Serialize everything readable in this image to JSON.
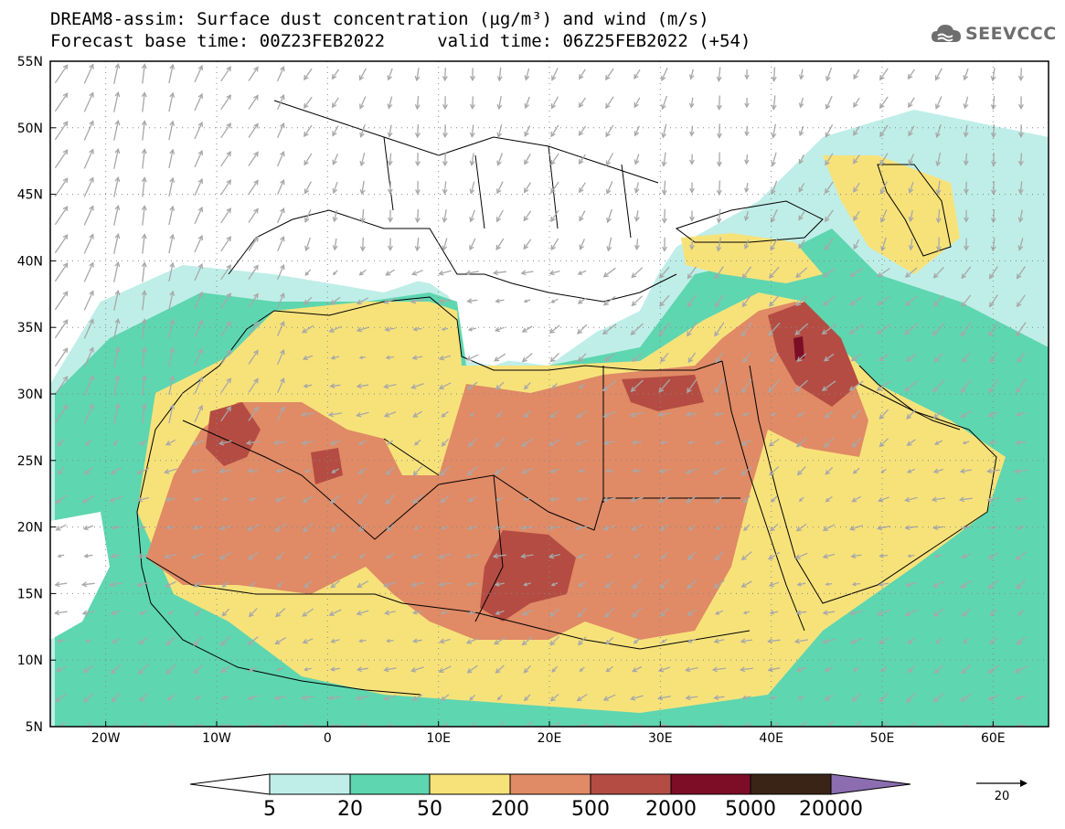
{
  "header": {
    "title_line1": "DREAM8-assim: Surface dust concentration (µg/m³) and wind (m/s)",
    "title_line2": "Forecast base time: 00Z23FEB2022     valid time: 06Z25FEB2022 (+54)"
  },
  "logo": {
    "text": "SEEVCCC",
    "icon": "cloud-logo-icon"
  },
  "map": {
    "lat_ticks": [
      "55N",
      "50N",
      "45N",
      "40N",
      "35N",
      "30N",
      "25N",
      "20N",
      "15N",
      "10N",
      "5N"
    ],
    "lon_ticks": [
      "20W",
      "10W",
      "0",
      "10E",
      "20E",
      "30E",
      "40E",
      "50E",
      "60E"
    ],
    "lon_range": [
      -25,
      65
    ],
    "lat_range": [
      5,
      55
    ],
    "wind_arrow_color": "#a8a8a8",
    "border_color": "#000000"
  },
  "colorbar": {
    "labels": [
      "5",
      "20",
      "50",
      "200",
      "500",
      "2000",
      "5000",
      "20000"
    ],
    "colors": [
      "#ffffff",
      "#bfeee8",
      "#5ed6b0",
      "#f7e27a",
      "#e08a66",
      "#b44c43",
      "#7d0d27",
      "#3a2416",
      "#8b6db0"
    ]
  },
  "reference_vector": {
    "label": "20"
  },
  "dust_colors": {
    "c20": "#bfeee8",
    "c50": "#5ed6b0",
    "c200": "#f7e27a",
    "c500": "#e08a66",
    "c2000": "#b44c43",
    "c5000": "#7d0d27"
  }
}
